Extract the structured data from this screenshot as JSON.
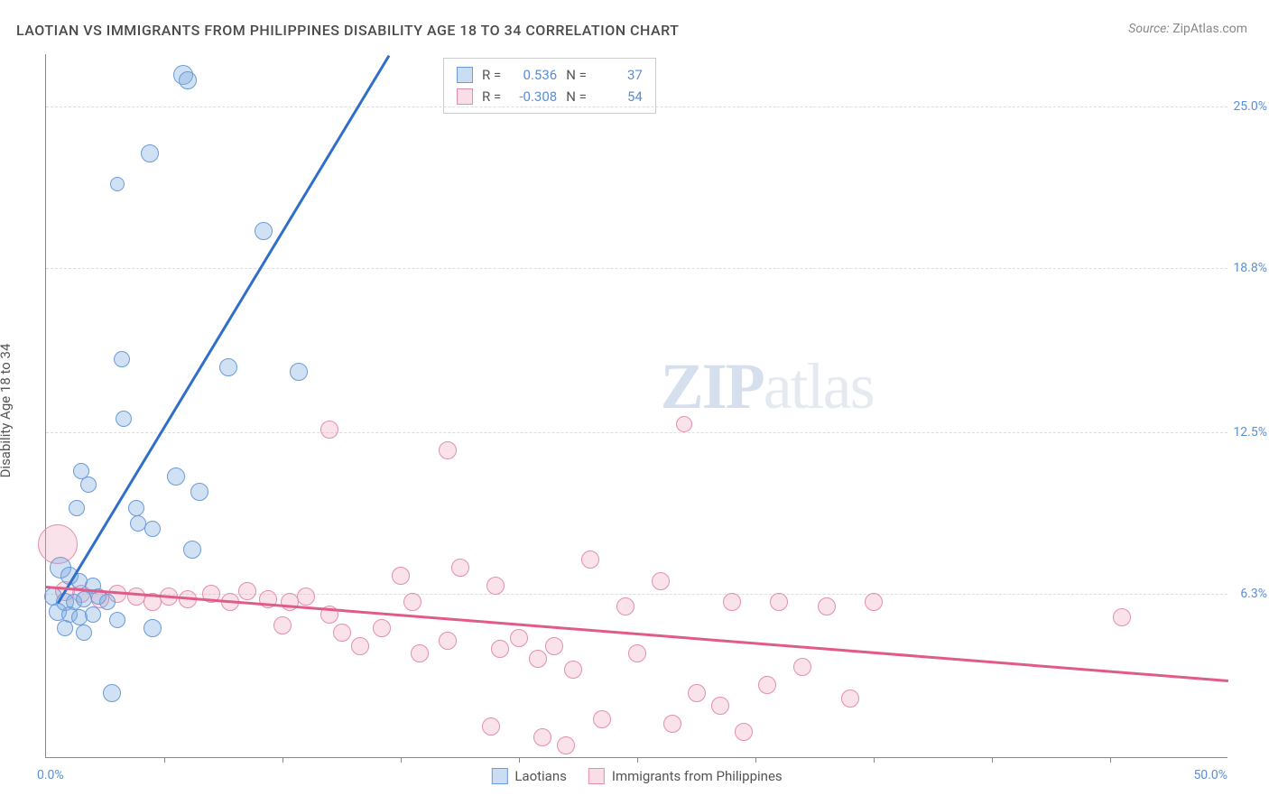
{
  "title": "LAOTIAN VS IMMIGRANTS FROM PHILIPPINES DISABILITY AGE 18 TO 34 CORRELATION CHART",
  "source_label": "Source:",
  "source_value": "ZipAtlas.com",
  "y_axis_label": "Disability Age 18 to 34",
  "watermark_zip": "ZIP",
  "watermark_atlas": "atlas",
  "chart": {
    "type": "scatter",
    "xlim": [
      0,
      50
    ],
    "ylim": [
      0,
      27
    ],
    "y_ticks": [
      6.3,
      12.5,
      18.8,
      25.0
    ],
    "y_tick_labels": [
      "6.3%",
      "12.5%",
      "18.8%",
      "25.0%"
    ],
    "x_ticks": [
      5,
      10,
      15,
      20,
      25,
      30,
      35,
      40,
      45
    ],
    "x_origin_label": "0.0%",
    "x_max_label": "50.0%",
    "grid_color": "#dddddd",
    "axis_color": "#888888",
    "background_color": "#ffffff"
  },
  "series": {
    "blue": {
      "name": "Laotians",
      "color_fill": "rgba(124,169,224,0.35)",
      "color_stroke": "#6b9bd8",
      "trend_color": "#2f6fc9",
      "R": "0.536",
      "N": "37",
      "trend": {
        "x1": 0.5,
        "y1": 6.0,
        "x2": 14.5,
        "y2": 27.0
      },
      "points": [
        {
          "x": 5.8,
          "y": 26.2,
          "r": 11
        },
        {
          "x": 6.0,
          "y": 26.0,
          "r": 10
        },
        {
          "x": 4.4,
          "y": 23.2,
          "r": 10
        },
        {
          "x": 3.0,
          "y": 22.0,
          "r": 8
        },
        {
          "x": 9.2,
          "y": 20.2,
          "r": 10
        },
        {
          "x": 3.2,
          "y": 15.3,
          "r": 9
        },
        {
          "x": 7.7,
          "y": 15.0,
          "r": 10
        },
        {
          "x": 10.7,
          "y": 14.8,
          "r": 10
        },
        {
          "x": 3.3,
          "y": 13.0,
          "r": 9
        },
        {
          "x": 1.5,
          "y": 11.0,
          "r": 9
        },
        {
          "x": 1.8,
          "y": 10.5,
          "r": 9
        },
        {
          "x": 5.5,
          "y": 10.8,
          "r": 10
        },
        {
          "x": 6.5,
          "y": 10.2,
          "r": 10
        },
        {
          "x": 1.3,
          "y": 9.6,
          "r": 9
        },
        {
          "x": 3.8,
          "y": 9.6,
          "r": 9
        },
        {
          "x": 3.9,
          "y": 9.0,
          "r": 9
        },
        {
          "x": 4.5,
          "y": 8.8,
          "r": 9
        },
        {
          "x": 6.2,
          "y": 8.0,
          "r": 10
        },
        {
          "x": 0.6,
          "y": 7.3,
          "r": 12
        },
        {
          "x": 1.0,
          "y": 7.0,
          "r": 10
        },
        {
          "x": 1.4,
          "y": 6.8,
          "r": 9
        },
        {
          "x": 2.0,
          "y": 6.6,
          "r": 9
        },
        {
          "x": 0.3,
          "y": 6.2,
          "r": 10
        },
        {
          "x": 0.8,
          "y": 6.0,
          "r": 10
        },
        {
          "x": 1.2,
          "y": 6.0,
          "r": 9
        },
        {
          "x": 1.6,
          "y": 6.1,
          "r": 9
        },
        {
          "x": 2.2,
          "y": 6.2,
          "r": 9
        },
        {
          "x": 2.6,
          "y": 6.0,
          "r": 9
        },
        {
          "x": 0.5,
          "y": 5.6,
          "r": 10
        },
        {
          "x": 1.0,
          "y": 5.5,
          "r": 9
        },
        {
          "x": 1.4,
          "y": 5.4,
          "r": 9
        },
        {
          "x": 2.0,
          "y": 5.5,
          "r": 9
        },
        {
          "x": 3.0,
          "y": 5.3,
          "r": 9
        },
        {
          "x": 4.5,
          "y": 5.0,
          "r": 10
        },
        {
          "x": 0.8,
          "y": 5.0,
          "r": 9
        },
        {
          "x": 1.6,
          "y": 4.8,
          "r": 9
        },
        {
          "x": 2.8,
          "y": 2.5,
          "r": 10
        }
      ]
    },
    "pink": {
      "name": "Immigrants from Philippines",
      "color_fill": "rgba(240,160,185,0.3)",
      "color_stroke": "#e38fab",
      "trend_color": "#e05b8a",
      "R": "-0.308",
      "N": "54",
      "trend": {
        "x1": 0,
        "y1": 6.6,
        "x2": 50,
        "y2": 3.0
      },
      "points": [
        {
          "x": 0.5,
          "y": 8.2,
          "r": 22
        },
        {
          "x": 12.0,
          "y": 12.6,
          "r": 10
        },
        {
          "x": 17.0,
          "y": 11.8,
          "r": 10
        },
        {
          "x": 27.0,
          "y": 12.8,
          "r": 9
        },
        {
          "x": 0.8,
          "y": 6.4,
          "r": 11
        },
        {
          "x": 1.5,
          "y": 6.3,
          "r": 10
        },
        {
          "x": 2.3,
          "y": 6.1,
          "r": 10
        },
        {
          "x": 3.0,
          "y": 6.3,
          "r": 10
        },
        {
          "x": 3.8,
          "y": 6.2,
          "r": 10
        },
        {
          "x": 4.5,
          "y": 6.0,
          "r": 10
        },
        {
          "x": 5.2,
          "y": 6.2,
          "r": 10
        },
        {
          "x": 6.0,
          "y": 6.1,
          "r": 10
        },
        {
          "x": 7.0,
          "y": 6.3,
          "r": 10
        },
        {
          "x": 7.8,
          "y": 6.0,
          "r": 10
        },
        {
          "x": 8.5,
          "y": 6.4,
          "r": 10
        },
        {
          "x": 9.4,
          "y": 6.1,
          "r": 10
        },
        {
          "x": 10.3,
          "y": 6.0,
          "r": 10
        },
        {
          "x": 11.0,
          "y": 6.2,
          "r": 10
        },
        {
          "x": 15.0,
          "y": 7.0,
          "r": 10
        },
        {
          "x": 15.5,
          "y": 6.0,
          "r": 10
        },
        {
          "x": 17.5,
          "y": 7.3,
          "r": 10
        },
        {
          "x": 19.0,
          "y": 6.6,
          "r": 10
        },
        {
          "x": 23.0,
          "y": 7.6,
          "r": 10
        },
        {
          "x": 24.5,
          "y": 5.8,
          "r": 10
        },
        {
          "x": 26.0,
          "y": 6.8,
          "r": 10
        },
        {
          "x": 29.0,
          "y": 6.0,
          "r": 10
        },
        {
          "x": 31.0,
          "y": 6.0,
          "r": 10
        },
        {
          "x": 33.0,
          "y": 5.8,
          "r": 10
        },
        {
          "x": 35.0,
          "y": 6.0,
          "r": 10
        },
        {
          "x": 45.5,
          "y": 5.4,
          "r": 10
        },
        {
          "x": 10.0,
          "y": 5.1,
          "r": 10
        },
        {
          "x": 12.0,
          "y": 5.5,
          "r": 10
        },
        {
          "x": 12.5,
          "y": 4.8,
          "r": 10
        },
        {
          "x": 13.3,
          "y": 4.3,
          "r": 10
        },
        {
          "x": 14.2,
          "y": 5.0,
          "r": 10
        },
        {
          "x": 15.8,
          "y": 4.0,
          "r": 10
        },
        {
          "x": 17.0,
          "y": 4.5,
          "r": 10
        },
        {
          "x": 19.2,
          "y": 4.2,
          "r": 10
        },
        {
          "x": 20.0,
          "y": 4.6,
          "r": 10
        },
        {
          "x": 20.8,
          "y": 3.8,
          "r": 10
        },
        {
          "x": 21.5,
          "y": 4.3,
          "r": 10
        },
        {
          "x": 22.3,
          "y": 3.4,
          "r": 10
        },
        {
          "x": 25.0,
          "y": 4.0,
          "r": 10
        },
        {
          "x": 27.5,
          "y": 2.5,
          "r": 10
        },
        {
          "x": 28.5,
          "y": 2.0,
          "r": 10
        },
        {
          "x": 30.5,
          "y": 2.8,
          "r": 10
        },
        {
          "x": 32.0,
          "y": 3.5,
          "r": 10
        },
        {
          "x": 34.0,
          "y": 2.3,
          "r": 10
        },
        {
          "x": 18.8,
          "y": 1.2,
          "r": 10
        },
        {
          "x": 21.0,
          "y": 0.8,
          "r": 10
        },
        {
          "x": 23.5,
          "y": 1.5,
          "r": 10
        },
        {
          "x": 26.5,
          "y": 1.3,
          "r": 10
        },
        {
          "x": 29.5,
          "y": 1.0,
          "r": 10
        },
        {
          "x": 22.0,
          "y": 0.5,
          "r": 10
        }
      ]
    }
  },
  "legend_top": {
    "r_label": "R  =",
    "n_label": "N  ="
  },
  "legend_bottom": [
    {
      "swatch": "blue",
      "label_key": "series.blue.name"
    },
    {
      "swatch": "pink",
      "label_key": "series.pink.name"
    }
  ]
}
